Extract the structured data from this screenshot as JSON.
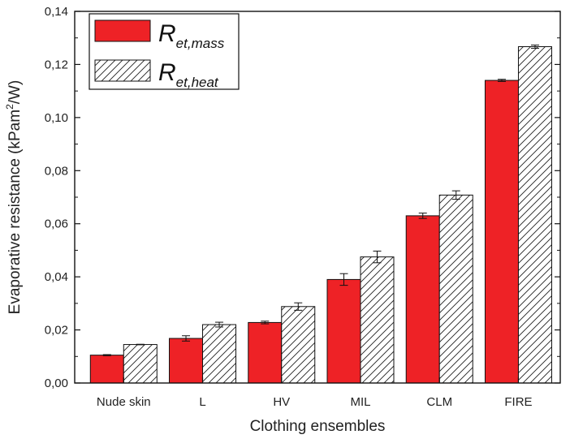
{
  "chart_data": {
    "type": "bar",
    "title": "",
    "xlabel": "Clothing ensembles",
    "ylabel": "Evaporative resistance (kPam²/W)",
    "ylim": [
      0,
      0.14
    ],
    "yticks": [
      "0,00",
      "0,02",
      "0,04",
      "0,06",
      "0,08",
      "0,10",
      "0,12",
      "0,14"
    ],
    "yticks_values": [
      0,
      0.02,
      0.04,
      0.06,
      0.08,
      0.1,
      0.12,
      0.14
    ],
    "categories": [
      "Nude skin",
      "L",
      "HV",
      "MIL",
      "CLM",
      "FIRE"
    ],
    "legend_position": "top-left",
    "series": [
      {
        "name": "R",
        "name_sub": "et,mass",
        "color": "#ee2226",
        "pattern": "solid",
        "values": [
          0.0105,
          0.0168,
          0.0228,
          0.039,
          0.063,
          0.114
        ],
        "errors": [
          0.0002,
          0.001,
          0.0005,
          0.0022,
          0.001,
          0.0004
        ]
      },
      {
        "name": "R",
        "name_sub": "et,heat",
        "color": "#ffffff",
        "pattern": "hatch",
        "values": [
          0.0145,
          0.022,
          0.0288,
          0.0475,
          0.0708,
          0.1267
        ],
        "errors": [
          0.0001,
          0.0009,
          0.0014,
          0.0022,
          0.0016,
          0.0006
        ]
      }
    ]
  }
}
